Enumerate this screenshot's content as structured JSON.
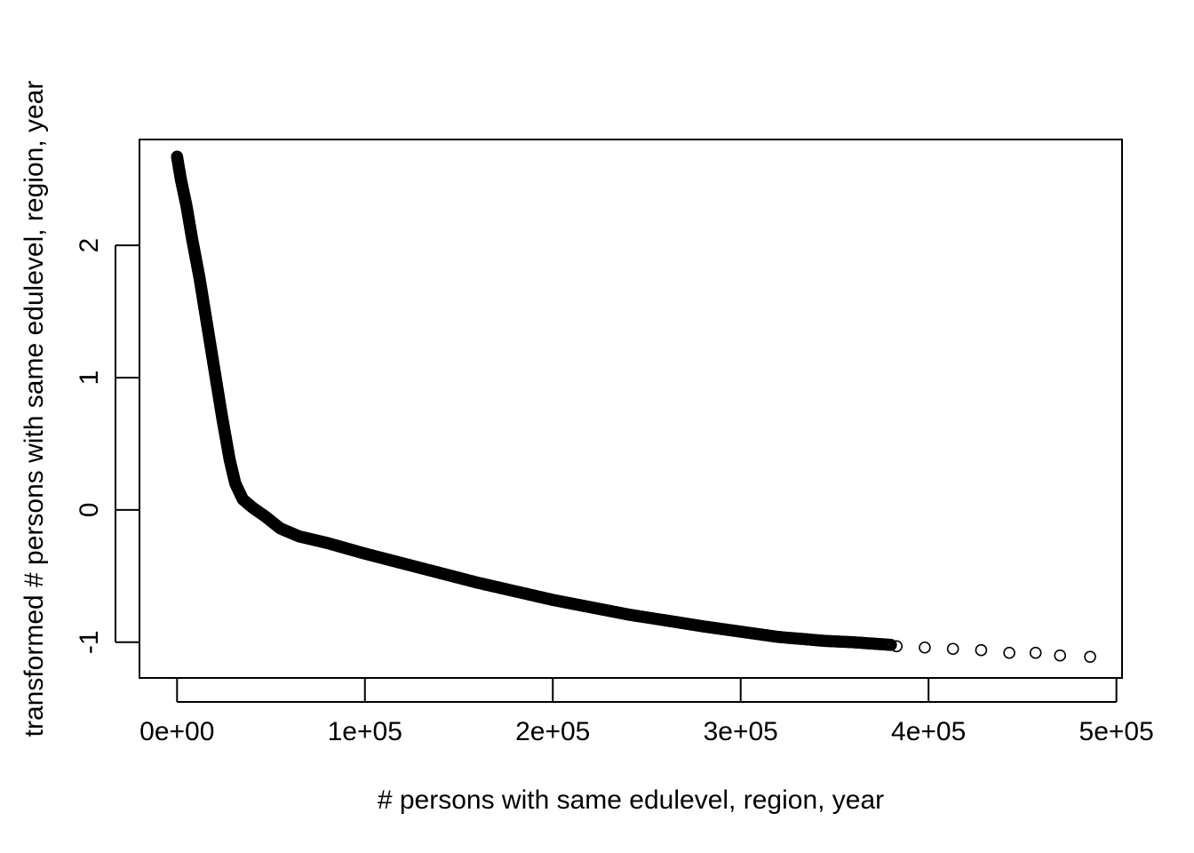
{
  "chart_data": {
    "type": "scatter",
    "title": "",
    "xlabel": "# persons with same edulevel, region, year",
    "ylabel": "transformed # persons with same edulevel, region, year",
    "xlim": [
      -20000,
      503000
    ],
    "ylim": [
      -1.27,
      2.8
    ],
    "x_ticks": [
      0,
      100000,
      200000,
      300000,
      400000,
      500000
    ],
    "x_tick_labels": [
      "0e+00",
      "1e+05",
      "2e+05",
      "3e+05",
      "4e+05",
      "5e+05"
    ],
    "y_ticks": [
      -1,
      0,
      1,
      2
    ],
    "y_tick_labels": [
      "-1",
      "0",
      "1",
      "2"
    ],
    "grid": false,
    "legend": "none",
    "marker": "open-circle",
    "color": "#000000",
    "curve_points": [
      {
        "x": 0,
        "y": 2.67
      },
      {
        "x": 2000,
        "y": 2.5
      },
      {
        "x": 5000,
        "y": 2.3
      },
      {
        "x": 8000,
        "y": 2.05
      },
      {
        "x": 12000,
        "y": 1.75
      },
      {
        "x": 16000,
        "y": 1.4
      },
      {
        "x": 20000,
        "y": 1.05
      },
      {
        "x": 24000,
        "y": 0.7
      },
      {
        "x": 28000,
        "y": 0.38
      },
      {
        "x": 31000,
        "y": 0.2
      },
      {
        "x": 35000,
        "y": 0.08
      },
      {
        "x": 40000,
        "y": 0.02
      },
      {
        "x": 47000,
        "y": -0.05
      },
      {
        "x": 55000,
        "y": -0.14
      },
      {
        "x": 65000,
        "y": -0.2
      },
      {
        "x": 80000,
        "y": -0.25
      },
      {
        "x": 100000,
        "y": -0.33
      },
      {
        "x": 130000,
        "y": -0.44
      },
      {
        "x": 160000,
        "y": -0.55
      },
      {
        "x": 200000,
        "y": -0.68
      },
      {
        "x": 240000,
        "y": -0.79
      },
      {
        "x": 280000,
        "y": -0.88
      },
      {
        "x": 320000,
        "y": -0.96
      },
      {
        "x": 345000,
        "y": -0.99
      },
      {
        "x": 360000,
        "y": -1.0
      },
      {
        "x": 380000,
        "y": -1.02
      }
    ],
    "outliers": [
      {
        "x": 383000,
        "y": -1.03
      },
      {
        "x": 398000,
        "y": -1.04
      },
      {
        "x": 413000,
        "y": -1.05
      },
      {
        "x": 428000,
        "y": -1.06
      },
      {
        "x": 443000,
        "y": -1.08
      },
      {
        "x": 457000,
        "y": -1.08
      },
      {
        "x": 470000,
        "y": -1.1
      },
      {
        "x": 486000,
        "y": -1.11
      }
    ]
  }
}
